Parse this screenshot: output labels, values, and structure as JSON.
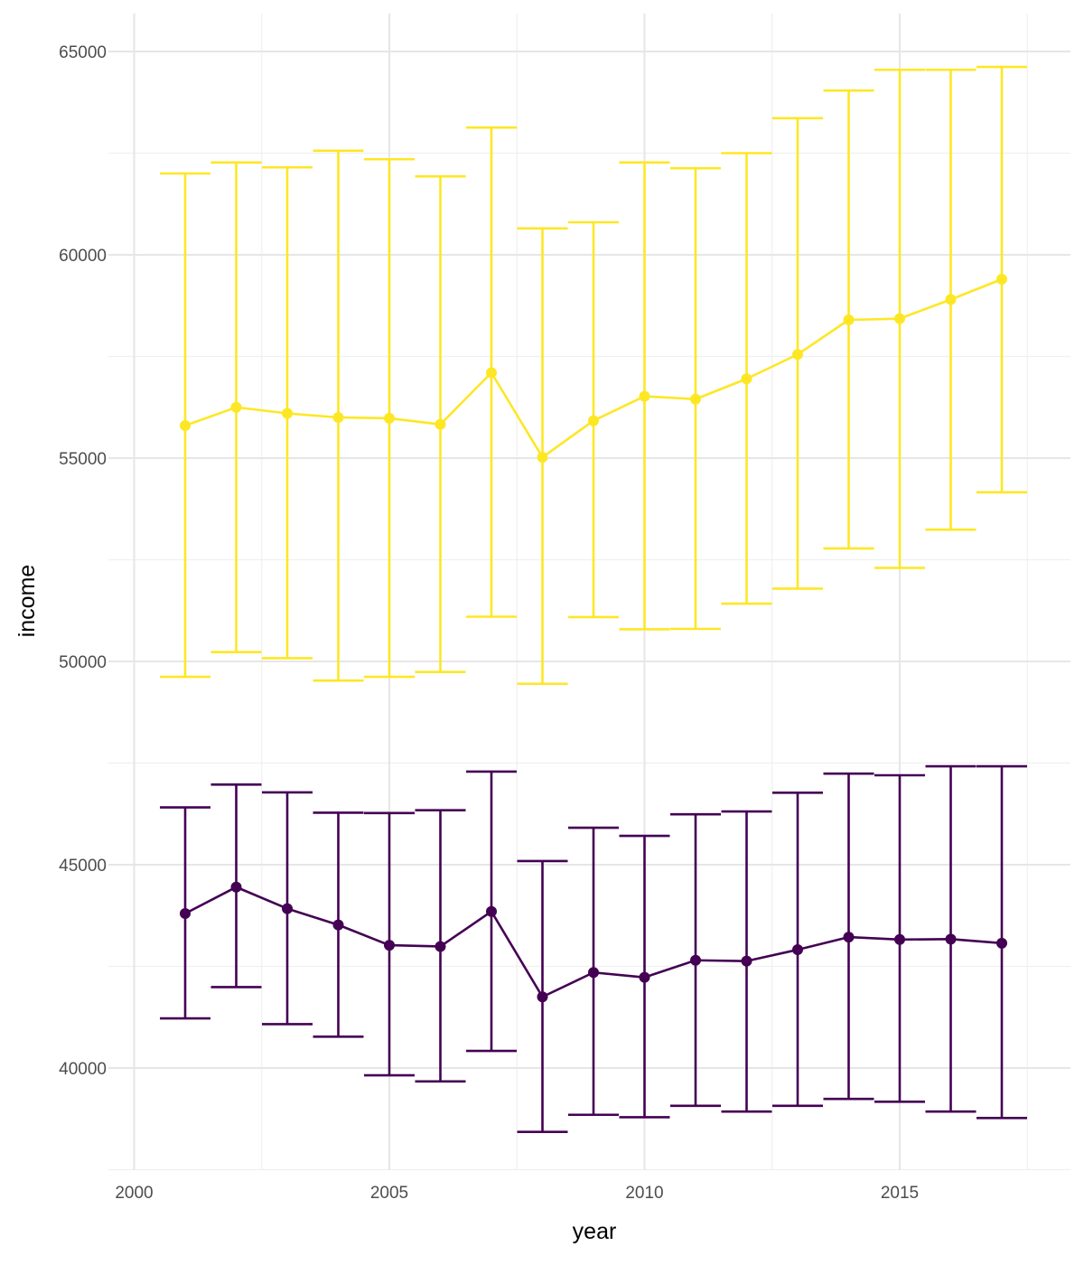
{
  "chart_data": {
    "type": "line",
    "title": "",
    "xlabel": "year",
    "ylabel": "income",
    "xlim": [
      2000,
      2017.5
    ],
    "ylim": [
      37500,
      66000
    ],
    "x_ticks": [
      2000,
      2005,
      2010,
      2015
    ],
    "y_ticks": [
      40000,
      45000,
      50000,
      55000,
      60000,
      65000
    ],
    "grid": true,
    "legend": "none",
    "error_bars": true,
    "x": [
      2001,
      2002,
      2003,
      2004,
      2005,
      2006,
      2007,
      2008,
      2009,
      2010,
      2011,
      2012,
      2013,
      2014,
      2015,
      2016,
      2017
    ],
    "series": [
      {
        "color": "#FDE725",
        "values": [
          55800,
          56250,
          56100,
          56000,
          55980,
          55830,
          57100,
          55020,
          55920,
          56520,
          56450,
          56950,
          57550,
          58400,
          58430,
          58900,
          59400
        ],
        "lower": [
          49620,
          50230,
          50080,
          49530,
          49620,
          49740,
          51100,
          49450,
          51090,
          50790,
          50800,
          51420,
          51790,
          52780,
          52300,
          53240,
          54160
        ],
        "upper": [
          62000,
          62270,
          62150,
          62560,
          62350,
          61930,
          63130,
          60650,
          60800,
          62270,
          62130,
          62500,
          63360,
          64040,
          64550,
          64550,
          64620
        ]
      },
      {
        "color": "#440154",
        "values": [
          43800,
          44450,
          43920,
          43520,
          43020,
          42990,
          43850,
          41750,
          42350,
          42230,
          42650,
          42630,
          42910,
          43220,
          43160,
          43170,
          43070
        ],
        "lower": [
          41220,
          41990,
          41080,
          40770,
          39820,
          39670,
          40420,
          38430,
          38850,
          38790,
          39070,
          38930,
          39070,
          39240,
          39170,
          38930,
          38770
        ],
        "upper": [
          46410,
          46970,
          46780,
          46280,
          46270,
          46340,
          47290,
          45090,
          45910,
          45710,
          46240,
          46310,
          46770,
          47240,
          47200,
          47420,
          47420
        ]
      }
    ]
  }
}
